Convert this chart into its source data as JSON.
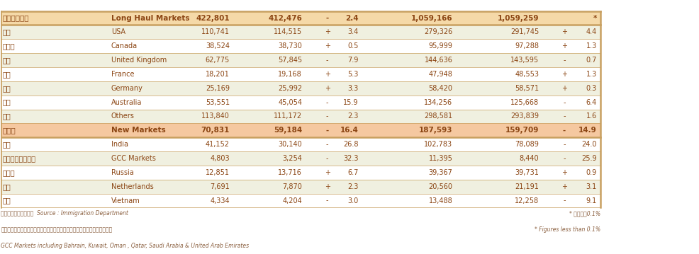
{
  "header_bg_long": "#f5d9a8",
  "header_bg_new": "#f5c8a0",
  "row_bg_light": "#f0f0e0",
  "row_bg_white": "#ffffff",
  "border_color": "#c8a060",
  "text_color_body": "#8B4513",
  "footer_text_color": "#8B6040",
  "rows": [
    {
      "zh": "長途地區市場",
      "en": "Long Haul Markets",
      "v1": "422,801",
      "v2": "412,476",
      "sign": "-",
      "pct": "2.4",
      "v3": "1,059,166",
      "v4": "1,059,259",
      "sign2": "",
      "pct2": "*",
      "is_header": true,
      "bg": "#f5d9a8"
    },
    {
      "zh": "美國",
      "en": "USA",
      "v1": "110,741",
      "v2": "114,515",
      "sign": "+",
      "pct": "3.4",
      "v3": "279,326",
      "v4": "291,745",
      "sign2": "+",
      "pct2": "4.4",
      "is_header": false,
      "bg": "#f0f0e0"
    },
    {
      "zh": "加拿大",
      "en": "Canada",
      "v1": "38,524",
      "v2": "38,730",
      "sign": "+",
      "pct": "0.5",
      "v3": "95,999",
      "v4": "97,288",
      "sign2": "+",
      "pct2": "1.3",
      "is_header": false,
      "bg": "#ffffff"
    },
    {
      "zh": "英國",
      "en": "United Kingdom",
      "v1": "62,775",
      "v2": "57,845",
      "sign": "-",
      "pct": "7.9",
      "v3": "144,636",
      "v4": "143,595",
      "sign2": "-",
      "pct2": "0.7",
      "is_header": false,
      "bg": "#f0f0e0"
    },
    {
      "zh": "法國",
      "en": "France",
      "v1": "18,201",
      "v2": "19,168",
      "sign": "+",
      "pct": "5.3",
      "v3": "47,948",
      "v4": "48,553",
      "sign2": "+",
      "pct2": "1.3",
      "is_header": false,
      "bg": "#ffffff"
    },
    {
      "zh": "德國",
      "en": "Germany",
      "v1": "25,169",
      "v2": "25,992",
      "sign": "+",
      "pct": "3.3",
      "v3": "58,420",
      "v4": "58,571",
      "sign2": "+",
      "pct2": "0.3",
      "is_header": false,
      "bg": "#f0f0e0"
    },
    {
      "zh": "澳洲",
      "en": "Australia",
      "v1": "53,551",
      "v2": "45,054",
      "sign": "-",
      "pct": "15.9",
      "v3": "134,256",
      "v4": "125,668",
      "sign2": "-",
      "pct2": "6.4",
      "is_header": false,
      "bg": "#ffffff"
    },
    {
      "zh": "其他",
      "en": "Others",
      "v1": "113,840",
      "v2": "111,172",
      "sign": "-",
      "pct": "2.3",
      "v3": "298,581",
      "v4": "293,839",
      "sign2": "-",
      "pct2": "1.6",
      "is_header": false,
      "bg": "#f0f0e0"
    },
    {
      "zh": "新市場",
      "en": "New Markets",
      "v1": "70,831",
      "v2": "59,184",
      "sign": "-",
      "pct": "16.4",
      "v3": "187,593",
      "v4": "159,709",
      "sign2": "-",
      "pct2": "14.9",
      "is_header": true,
      "bg": "#f5c8a0"
    },
    {
      "zh": "印度",
      "en": "India",
      "v1": "41,152",
      "v2": "30,140",
      "sign": "-",
      "pct": "26.8",
      "v3": "102,783",
      "v4": "78,089",
      "sign2": "-",
      "pct2": "24.0",
      "is_header": false,
      "bg": "#ffffff"
    },
    {
      "zh": "海灣合作地區國家",
      "en": "GCC Markets",
      "v1": "4,803",
      "v2": "3,254",
      "sign": "-",
      "pct": "32.3",
      "v3": "11,395",
      "v4": "8,440",
      "sign2": "-",
      "pct2": "25.9",
      "is_header": false,
      "bg": "#f0f0e0"
    },
    {
      "zh": "俄羅斯",
      "en": "Russia",
      "v1": "12,851",
      "v2": "13,716",
      "sign": "+",
      "pct": "6.7",
      "v3": "39,367",
      "v4": "39,731",
      "sign2": "+",
      "pct2": "0.9",
      "is_header": false,
      "bg": "#ffffff"
    },
    {
      "zh": "荷蘭",
      "en": "Netherlands",
      "v1": "7,691",
      "v2": "7,870",
      "sign": "+",
      "pct": "2.3",
      "v3": "20,560",
      "v4": "21,191",
      "sign2": "+",
      "pct2": "3.1",
      "is_header": false,
      "bg": "#f0f0e0"
    },
    {
      "zh": "越南",
      "en": "Vietnam",
      "v1": "4,334",
      "v2": "4,204",
      "sign": "-",
      "pct": "3.0",
      "v3": "13,488",
      "v4": "12,258",
      "sign2": "-",
      "pct2": "9.1",
      "is_header": false,
      "bg": "#ffffff"
    }
  ],
  "footer1_zh": "資料來源：入境事務處  Source : Immigration Department",
  "footer2_zh": "海灣合作地區國家包括巴林、科威特、阿曼、卡塔爾、沙地阿拉伯以及阿聯酋",
  "footer3_en": "GCC Markets including Bahrain, Kuwait, Oman , Qatar, Saudi Arabia & United Arab Emirates",
  "footnote1": "* 數字少於0.1%",
  "footnote2": "* Figures less than 0.1%",
  "figsize": [
    9.86,
    3.59
  ],
  "dpi": 100
}
